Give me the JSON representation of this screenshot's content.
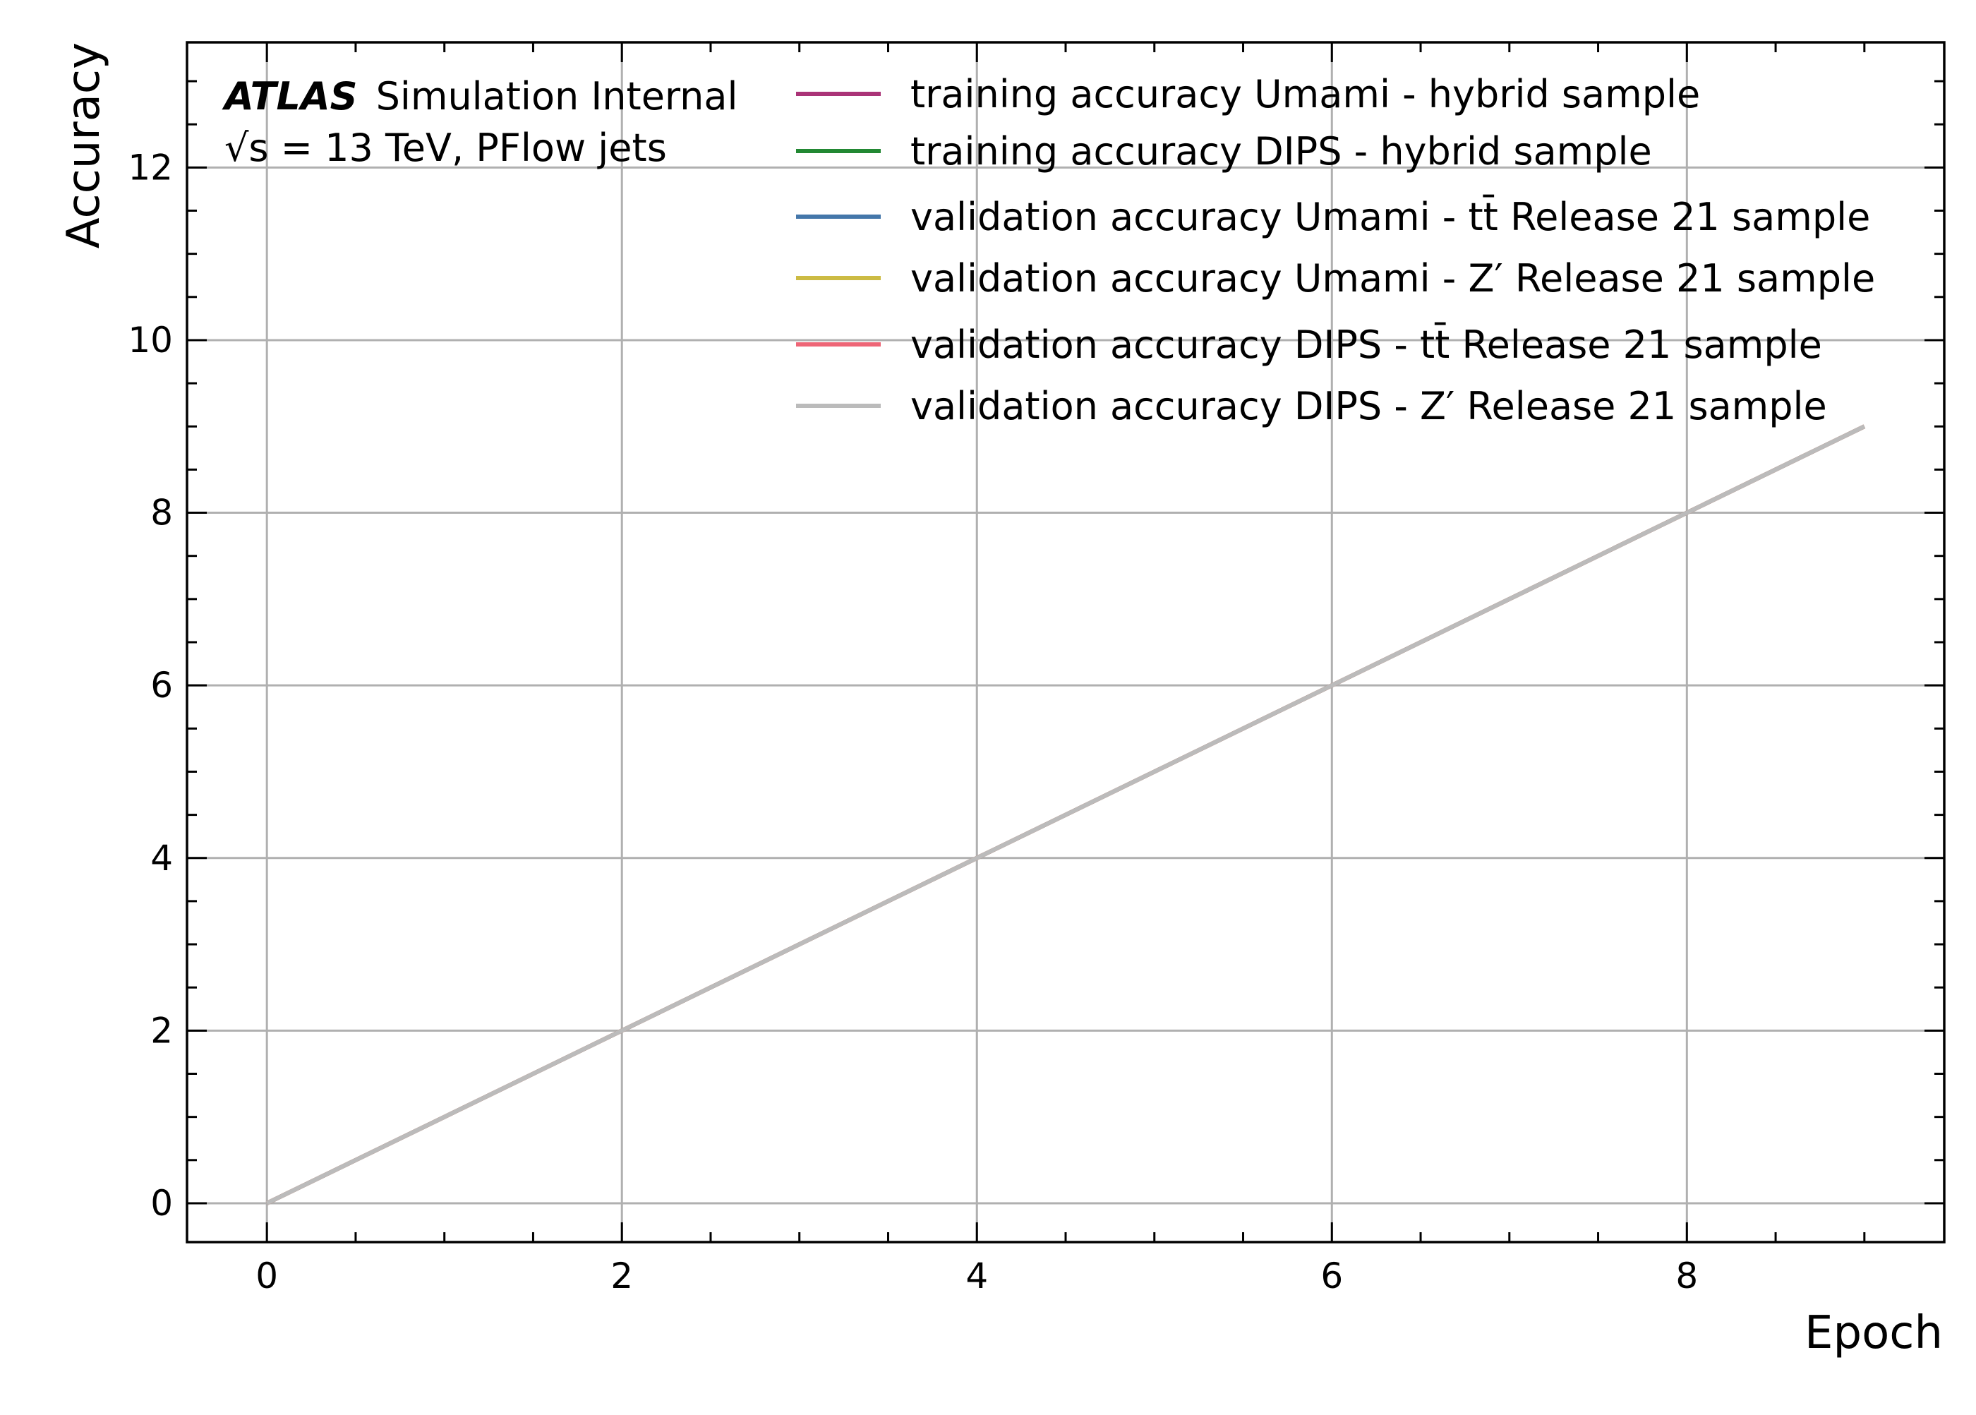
{
  "chart_data": {
    "type": "line",
    "xlabel": "Epoch",
    "ylabel": "Accuracy",
    "xlim": [
      -0.45,
      9.45
    ],
    "ylim": [
      -0.45,
      13.45
    ],
    "xticks": [
      0,
      2,
      4,
      6,
      8
    ],
    "yticks": [
      0,
      2,
      4,
      6,
      8,
      10,
      12
    ],
    "xtick_labels": [
      "0",
      "2",
      "4",
      "6",
      "8"
    ],
    "ytick_labels": [
      "0",
      "2",
      "4",
      "6",
      "8",
      "10",
      "12"
    ],
    "grid": true,
    "legend_position": "top-right",
    "x": [
      0,
      1,
      2,
      3,
      4,
      5,
      6,
      7,
      8,
      9
    ],
    "series": [
      {
        "name": "training accuracy Umami - hybrid sample",
        "values": [
          0,
          1,
          2,
          3,
          4,
          5,
          6,
          7,
          8,
          9
        ],
        "color": "#aa3377"
      },
      {
        "name": "training accuracy DIPS - hybrid sample",
        "values": [
          0,
          1,
          2,
          3,
          4,
          5,
          6,
          7,
          8,
          9
        ],
        "color": "#228833"
      },
      {
        "name": "validation accuracy Umami - tt̄ Release 21 sample",
        "values": [
          0,
          1,
          2,
          3,
          4,
          5,
          6,
          7,
          8,
          9
        ],
        "color": "#4477aa"
      },
      {
        "name": "validation accuracy Umami - Z′ Release 21 sample",
        "values": [
          0,
          1,
          2,
          3,
          4,
          5,
          6,
          7,
          8,
          9
        ],
        "color": "#ccbb44"
      },
      {
        "name": "validation accuracy DIPS - tt̄ Release 21 sample",
        "values": [
          0,
          1,
          2,
          3,
          4,
          5,
          6,
          7,
          8,
          9
        ],
        "color": "#ee6677"
      },
      {
        "name": "validation accuracy DIPS - Z′ Release 21 sample",
        "values": [
          0,
          1,
          2,
          3,
          4,
          5,
          6,
          7,
          8,
          9
        ],
        "color": "#bbbbbb"
      }
    ],
    "annotations": {
      "atlas": "ATLAS",
      "status": "Simulation Internal",
      "energy": "√s = 13 TeV, PFlow jets"
    }
  }
}
